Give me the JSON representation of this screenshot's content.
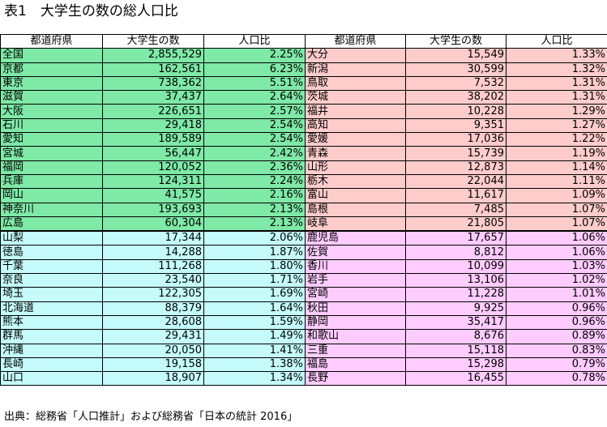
{
  "title": "表1　大学生の数の総人口比",
  "headers": [
    "都道府県",
    "大学生の数",
    "人口比",
    "都道府県",
    "大学生の数",
    "人口比"
  ],
  "colors": {
    "left_top": "#7fe9a7",
    "left_bottom": "#c5fbfb",
    "right_top": "#ffcccc",
    "right_bottom": "#ffccff"
  },
  "rows": [
    {
      "lp": "全国",
      "ls": "2,855,529",
      "lr": "2.25%",
      "rp": "大分",
      "rs": "15,549",
      "rr": "1.33%"
    },
    {
      "lp": "京都",
      "ls": "162,561",
      "lr": "6.23%",
      "rp": "新潟",
      "rs": "30,599",
      "rr": "1.32%"
    },
    {
      "lp": "東京",
      "ls": "738,362",
      "lr": "5.51%",
      "rp": "鳥取",
      "rs": "7,532",
      "rr": "1.31%"
    },
    {
      "lp": "滋賀",
      "ls": "37,437",
      "lr": "2.64%",
      "rp": "茨城",
      "rs": "38,202",
      "rr": "1.31%"
    },
    {
      "lp": "大阪",
      "ls": "226,651",
      "lr": "2.57%",
      "rp": "福井",
      "rs": "10,228",
      "rr": "1.29%"
    },
    {
      "lp": "石川",
      "ls": "29,418",
      "lr": "2.54%",
      "rp": "高知",
      "rs": "9,351",
      "rr": "1.27%"
    },
    {
      "lp": "愛知",
      "ls": "189,589",
      "lr": "2.54%",
      "rp": "愛媛",
      "rs": "17,036",
      "rr": "1.22%"
    },
    {
      "lp": "宮城",
      "ls": "56,447",
      "lr": "2.42%",
      "rp": "青森",
      "rs": "15,739",
      "rr": "1.19%"
    },
    {
      "lp": "福岡",
      "ls": "120,052",
      "lr": "2.36%",
      "rp": "山形",
      "rs": "12,873",
      "rr": "1.14%"
    },
    {
      "lp": "兵庫",
      "ls": "124,311",
      "lr": "2.24%",
      "rp": "栃木",
      "rs": "22,044",
      "rr": "1.11%"
    },
    {
      "lp": "岡山",
      "ls": "41,575",
      "lr": "2.16%",
      "rp": "富山",
      "rs": "11,617",
      "rr": "1.09%"
    },
    {
      "lp": "神奈川",
      "ls": "193,693",
      "lr": "2.13%",
      "rp": "島根",
      "rs": "7,485",
      "rr": "1.07%"
    },
    {
      "lp": "広島",
      "ls": "60,304",
      "lr": "2.13%",
      "rp": "岐阜",
      "rs": "21,805",
      "rr": "1.07%"
    },
    {
      "lp": "山梨",
      "ls": "17,344",
      "lr": "2.06%",
      "rp": "鹿児島",
      "rs": "17,657",
      "rr": "1.06%"
    },
    {
      "lp": "徳島",
      "ls": "14,288",
      "lr": "1.87%",
      "rp": "佐賀",
      "rs": "8,812",
      "rr": "1.06%"
    },
    {
      "lp": "千葉",
      "ls": "111,268",
      "lr": "1.80%",
      "rp": "香川",
      "rs": "10,099",
      "rr": "1.03%"
    },
    {
      "lp": "奈良",
      "ls": "23,540",
      "lr": "1.71%",
      "rp": "岩手",
      "rs": "13,106",
      "rr": "1.02%"
    },
    {
      "lp": "埼玉",
      "ls": "122,305",
      "lr": "1.69%",
      "rp": "宮崎",
      "rs": "11,228",
      "rr": "1.01%"
    },
    {
      "lp": "北海道",
      "ls": "88,379",
      "lr": "1.64%",
      "rp": "秋田",
      "rs": "9,925",
      "rr": "0.96%"
    },
    {
      "lp": "熊本",
      "ls": "28,608",
      "lr": "1.59%",
      "rp": "静岡",
      "rs": "35,417",
      "rr": "0.96%"
    },
    {
      "lp": "群馬",
      "ls": "29,431",
      "lr": "1.49%",
      "rp": "和歌山",
      "rs": "8,676",
      "rr": "0.89%"
    },
    {
      "lp": "沖縄",
      "ls": "20,050",
      "lr": "1.41%",
      "rp": "三重",
      "rs": "15,118",
      "rr": "0.83%"
    },
    {
      "lp": "長崎",
      "ls": "19,158",
      "lr": "1.38%",
      "rp": "福島",
      "rs": "15,298",
      "rr": "0.79%"
    },
    {
      "lp": "山口",
      "ls": "18,907",
      "lr": "1.34%",
      "rp": "長野",
      "rs": "16,455",
      "rr": "0.78%"
    }
  ],
  "footer": "出典：総務省「人口推計」および総務省「日本の統計 2016」"
}
